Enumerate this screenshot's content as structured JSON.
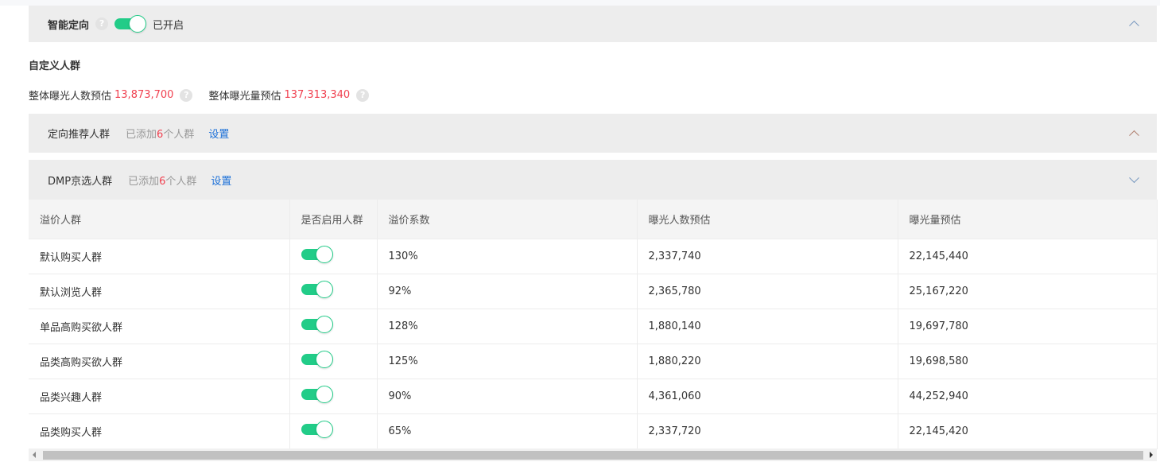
{
  "smart_targeting": {
    "label": "智能定向",
    "help_icon": "question-circle-icon",
    "status": "已开启",
    "enabled": true
  },
  "custom_audience": {
    "title": "自定义人群"
  },
  "stats": {
    "reach_label": "整体曝光人数预估",
    "reach_value": "13,873,700",
    "impr_label": "整体曝光量预估",
    "impr_value": "137,313,340"
  },
  "recommended": {
    "title": "定向推荐人群",
    "added_prefix": "已添加",
    "added_count": "6",
    "added_suffix": "个人群",
    "settings": "设置",
    "expanded": true
  },
  "dmp": {
    "title": "DMP京选人群",
    "added_prefix": "已添加",
    "added_count": "6",
    "added_suffix": "个人群",
    "settings": "设置",
    "expanded": false
  },
  "table": {
    "headers": [
      "溢价人群",
      "是否启用人群",
      "溢价系数",
      "曝光人数预估",
      "曝光量预估"
    ],
    "rows": [
      {
        "name": "默认购买人群",
        "enabled": true,
        "premium": "130%",
        "reach": "2,337,740",
        "impr": "22,145,440"
      },
      {
        "name": "默认浏览人群",
        "enabled": true,
        "premium": "92%",
        "reach": "2,365,780",
        "impr": "25,167,220"
      },
      {
        "name": "单品高购买欲人群",
        "enabled": true,
        "premium": "128%",
        "reach": "1,880,140",
        "impr": "19,697,780"
      },
      {
        "name": "品类高购买欲人群",
        "enabled": true,
        "premium": "125%",
        "reach": "1,880,220",
        "impr": "19,698,580"
      },
      {
        "name": "品类兴趣人群",
        "enabled": true,
        "premium": "90%",
        "reach": "4,361,060",
        "impr": "44,252,940"
      },
      {
        "name": "品类购买人群",
        "enabled": true,
        "premium": "65%",
        "reach": "2,337,720",
        "impr": "22,145,420"
      }
    ]
  },
  "colors": {
    "accent_green": "#22cc88",
    "highlight_red": "#f0404f",
    "link_blue": "#1a6fd8"
  }
}
